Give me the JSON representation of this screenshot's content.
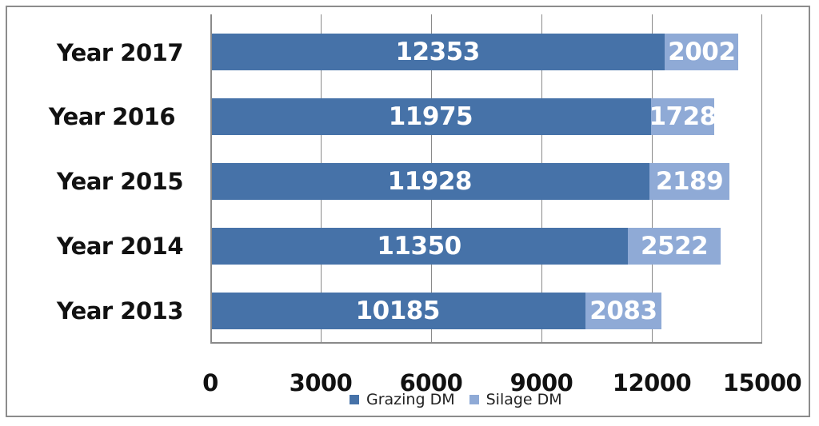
{
  "chart_data": {
    "type": "bar",
    "orientation": "horizontal",
    "stacked": true,
    "title": "",
    "xlabel": "",
    "ylabel": "",
    "categories": [
      "Year 2017",
      "Year 2016",
      "Year 2015",
      "Year 2014",
      "Year 2013"
    ],
    "series": [
      {
        "name": "Grazing DM",
        "color": "#4672a8",
        "values": [
          12353,
          11975,
          11928,
          11350,
          10185
        ]
      },
      {
        "name": "Silage DM",
        "color": "#8faad6",
        "values": [
          2002,
          1728,
          2189,
          2522,
          2083
        ]
      }
    ],
    "xlim": [
      0,
      15000
    ],
    "xticks": [
      0,
      3000,
      6000,
      9000,
      12000,
      15000
    ],
    "grid": {
      "vertical": true,
      "horizontal": false
    },
    "data_labels": true,
    "legend_position": "bottom"
  },
  "axis": {
    "ticks": [
      "0",
      "3000",
      "6000",
      "9000",
      "12000",
      "15000"
    ]
  },
  "legend": {
    "items": [
      {
        "label": "Grazing DM",
        "color": "#4672a8"
      },
      {
        "label": "Silage DM",
        "color": "#8faad6"
      }
    ]
  },
  "bars": [
    {
      "category": "Year 2017",
      "grazing": "12353",
      "silage": "2002"
    },
    {
      "category": "Year 2016",
      "grazing": "11975",
      "silage": "1728"
    },
    {
      "category": "Year 2015",
      "grazing": "11928",
      "silage": "2189"
    },
    {
      "category": "Year 2014",
      "grazing": "11350",
      "silage": "2522"
    },
    {
      "category": "Year 2013",
      "grazing": "10185",
      "silage": "2083"
    }
  ]
}
